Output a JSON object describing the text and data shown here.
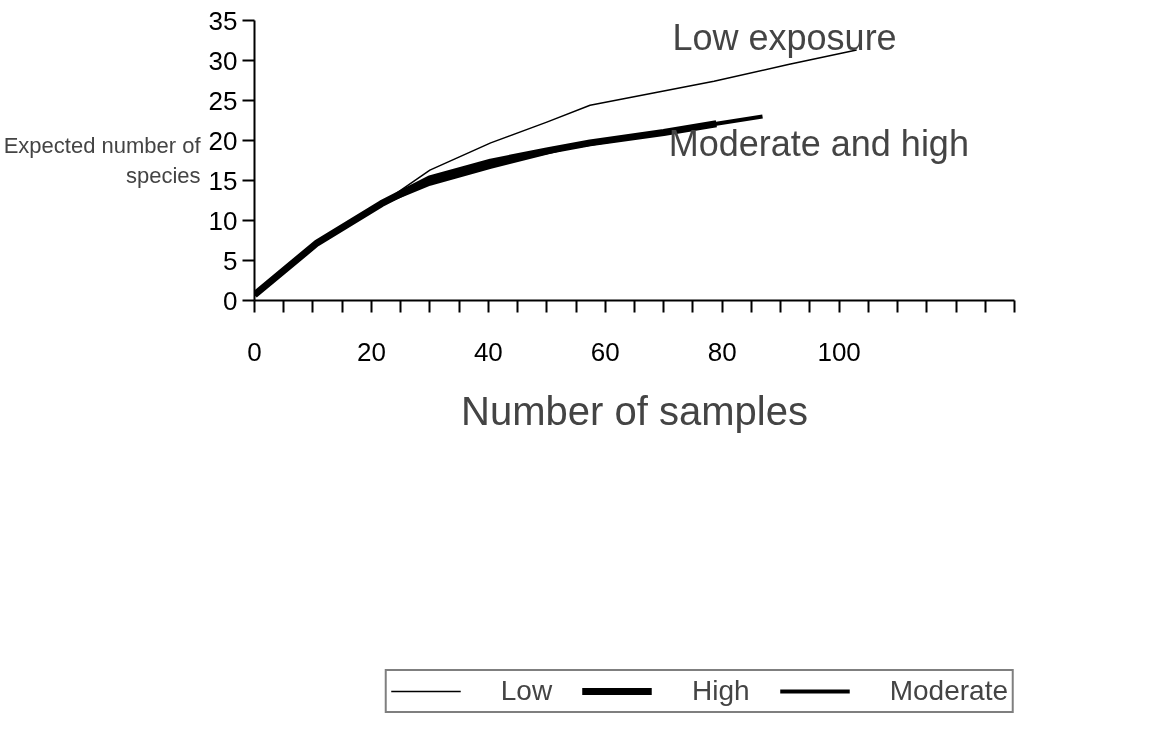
{
  "chart_data": {
    "type": "line",
    "xlabel": "Number of samples",
    "ylabel": "Expected number of species",
    "xlim": [
      0,
      130
    ],
    "ylim": [
      0,
      35
    ],
    "xticks": [
      0,
      {
        "value": 5,
        "label": null
      },
      {
        "value": 10,
        "label": null
      },
      {
        "value": 15,
        "label": null
      },
      20,
      {
        "value": 25,
        "label": null
      },
      {
        "value": 30,
        "label": null
      },
      {
        "value": 35,
        "label": null
      },
      40,
      {
        "value": 45,
        "label": null
      },
      {
        "value": 50,
        "label": null
      },
      {
        "value": 55,
        "label": null
      },
      60,
      {
        "value": 65,
        "label": null
      },
      {
        "value": 70,
        "label": null
      },
      {
        "value": 75,
        "label": null
      },
      80,
      {
        "value": 85,
        "label": null
      },
      {
        "value": 90,
        "label": null
      },
      {
        "value": 95,
        "label": null
      },
      100,
      {
        "value": 105,
        "label": null
      },
      {
        "value": 110,
        "label": null
      },
      {
        "value": 115,
        "label": null
      },
      {
        "value": 120,
        "label": null
      },
      {
        "value": 125,
        "label": null
      },
      {
        "value": 130,
        "label": null
      }
    ],
    "yticks": [
      0,
      5,
      10,
      15,
      20,
      25,
      30,
      35
    ],
    "grid": false,
    "legend": "bottom",
    "marker": "none",
    "series": [
      {
        "name": "Low",
        "color": "#000000",
        "x": [
          0,
          10.7,
          21.7,
          30,
          40.4,
          50,
          57.4,
          70,
          78.6,
          91.3,
          103
        ],
        "values": [
          0.7,
          7.2,
          12.1,
          16.3,
          19.7,
          22.3,
          24.4,
          26.2,
          27.4,
          29.5,
          31.3
        ]
      },
      {
        "name": "High",
        "color": "#000000",
        "x": [
          0,
          10.7,
          21.7,
          30,
          40.4,
          50,
          57.4,
          70,
          79
        ],
        "values": [
          0.7,
          7.2,
          12.1,
          15.2,
          17.3,
          18.7,
          19.7,
          21,
          22.1
        ]
      },
      {
        "name": "Moderate",
        "color": "#000000",
        "x": [
          0,
          10.7,
          21.7,
          30,
          40.4,
          54,
          70,
          79,
          86.9
        ],
        "values": [
          0.7,
          7.2,
          12.1,
          14.6,
          16.7,
          19.2,
          21,
          22.1,
          23.0
        ]
      }
    ],
    "annotations": [
      "Low exposure",
      "Moderate and high"
    ]
  }
}
